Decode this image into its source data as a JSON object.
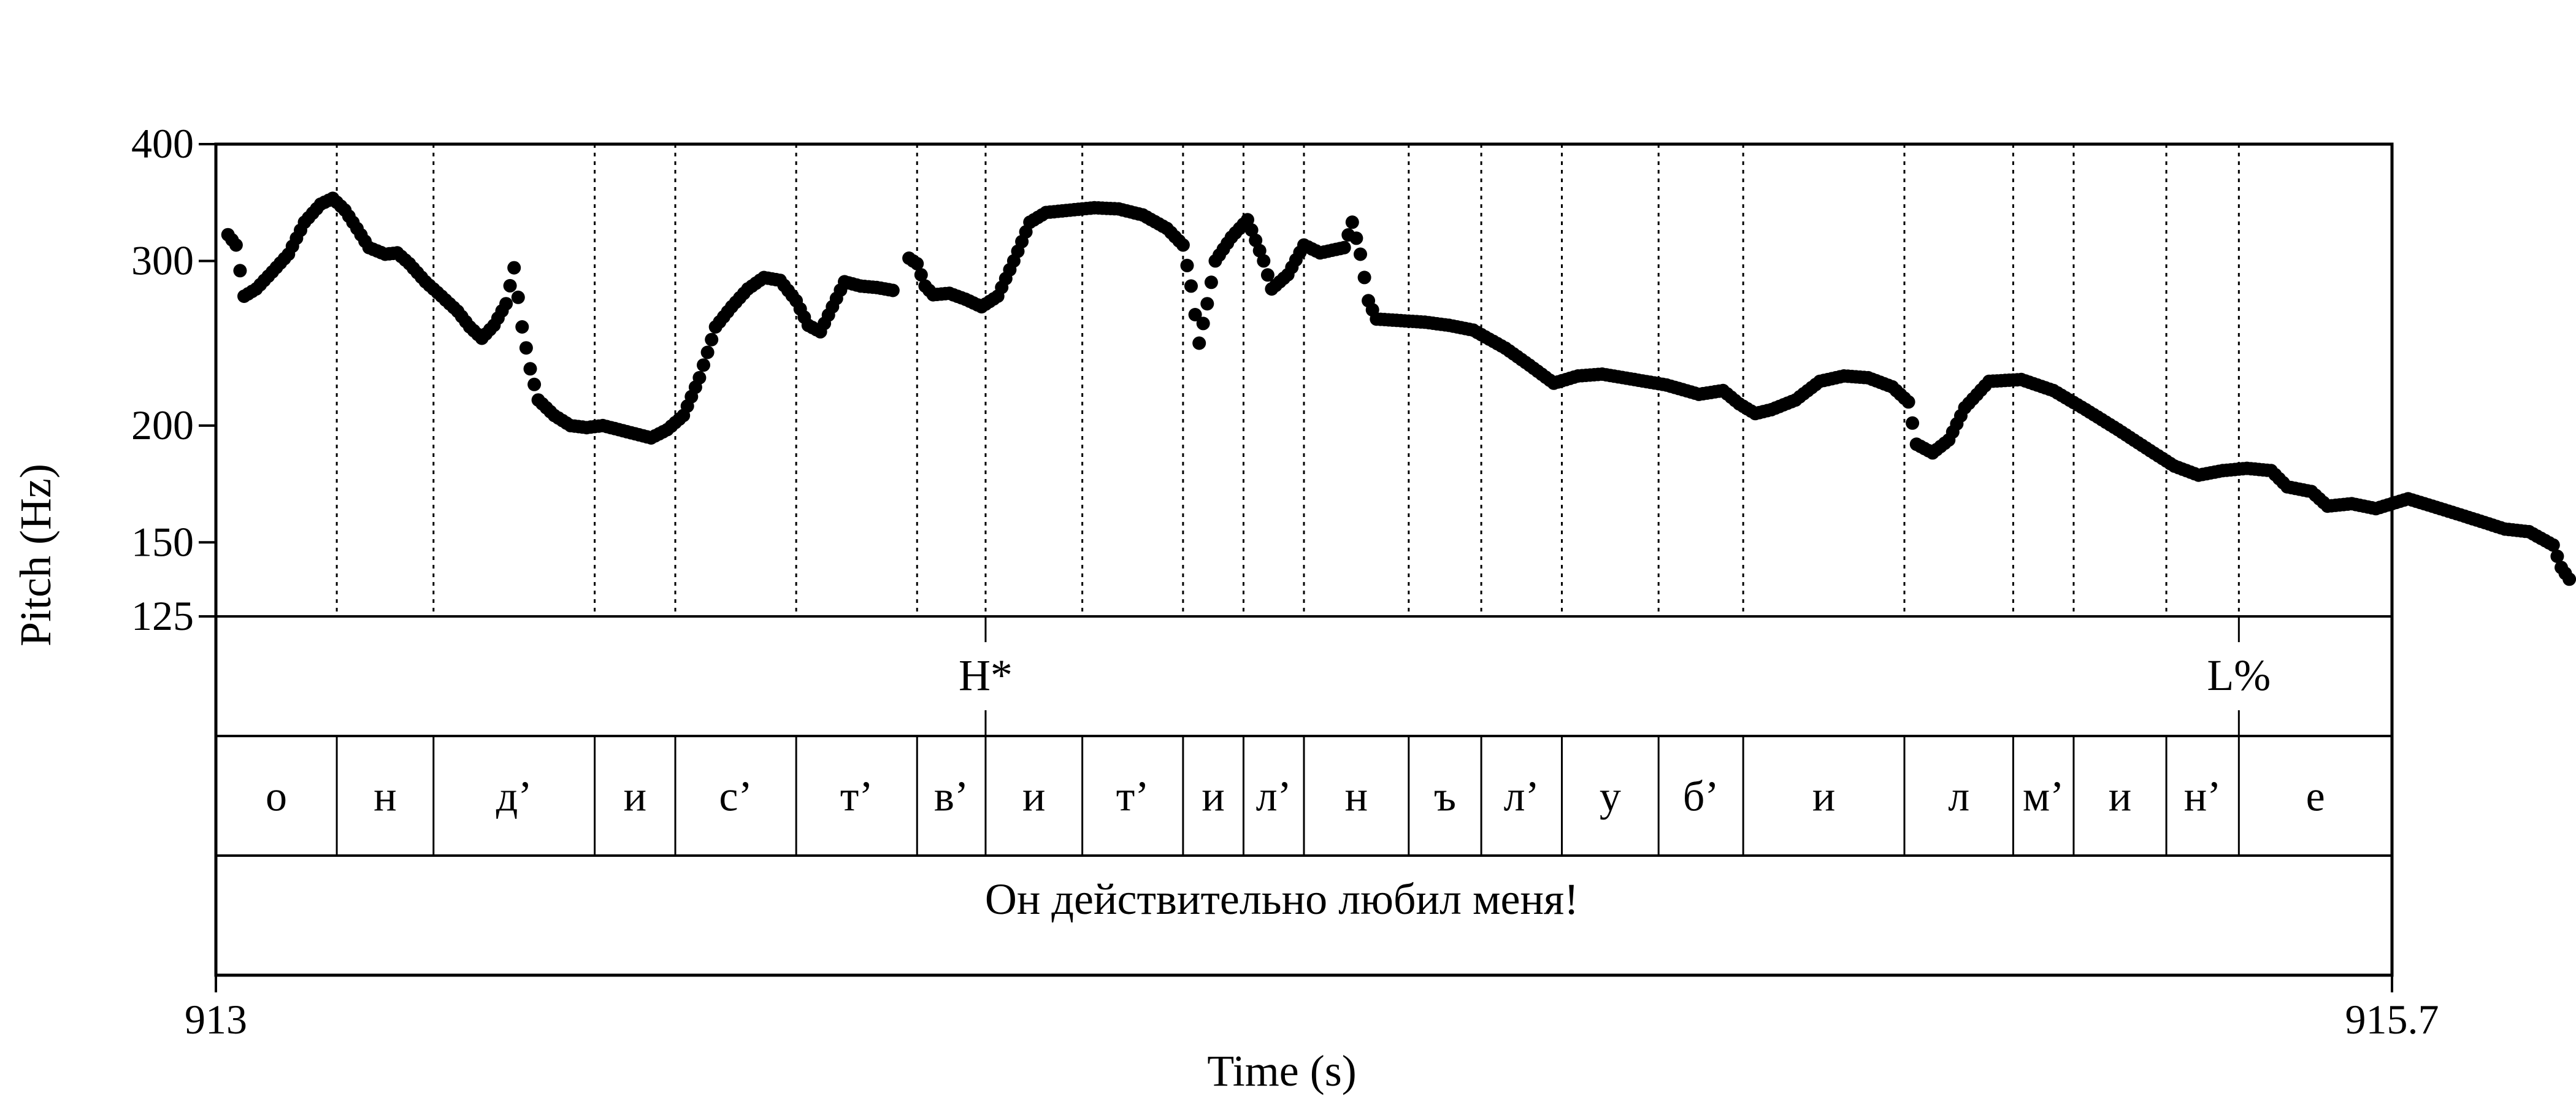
{
  "chart_data": {
    "type": "scatter",
    "xlabel": "Time (s)",
    "ylabel": "Pitch (Hz)",
    "xlim": [
      913,
      915.7
    ],
    "ylim": [
      125,
      400
    ],
    "y_scale": "log",
    "x_ticks": [
      "913",
      "915.7"
    ],
    "y_ticks": [
      {
        "value": 400,
        "label": "400"
      },
      {
        "value": 300,
        "label": "300"
      },
      {
        "value": 200,
        "label": "200"
      },
      {
        "value": 150,
        "label": "150"
      },
      {
        "value": 125,
        "label": "125"
      }
    ],
    "pitch_series": [
      {
        "name": "",
        "points": [
          [
            913.015,
            320
          ],
          [
            913.025,
            312
          ],
          [
            913.035,
            275
          ],
          [
            913.05,
            280
          ],
          [
            913.07,
            292
          ],
          [
            913.09,
            305
          ],
          [
            913.11,
            330
          ],
          [
            913.13,
            345
          ],
          [
            913.145,
            350
          ],
          [
            913.16,
            340
          ],
          [
            913.175,
            325
          ],
          [
            913.19,
            310
          ],
          [
            913.21,
            305
          ],
          [
            913.225,
            306
          ],
          [
            913.24,
            298
          ],
          [
            913.26,
            285
          ],
          [
            913.28,
            275
          ],
          [
            913.3,
            265
          ],
          [
            913.315,
            255
          ],
          [
            913.33,
            248
          ],
          [
            913.345,
            256
          ],
          [
            913.36,
            270
          ],
          [
            913.37,
            295
          ],
          [
            913.38,
            255
          ],
          [
            913.39,
            230
          ],
          [
            913.4,
            213
          ],
          [
            913.42,
            205
          ],
          [
            913.44,
            200
          ],
          [
            913.46,
            199
          ],
          [
            913.48,
            200
          ],
          [
            913.5,
            198
          ],
          [
            913.52,
            196
          ],
          [
            913.54,
            194
          ],
          [
            913.56,
            198
          ],
          [
            913.58,
            205
          ],
          [
            913.6,
            225
          ],
          [
            913.62,
            255
          ],
          [
            913.64,
            268
          ],
          [
            913.66,
            280
          ],
          [
            913.68,
            288
          ],
          [
            913.7,
            286
          ],
          [
            913.72,
            272
          ],
          [
            913.735,
            256
          ],
          [
            913.75,
            252
          ],
          [
            913.78,
            285
          ],
          [
            913.8,
            282
          ],
          [
            913.82,
            281
          ],
          [
            913.84,
            279
          ]
        ]
      },
      {
        "name": "",
        "points": [
          [
            913.86,
            302
          ],
          [
            913.87,
            298
          ],
          [
            913.88,
            282
          ],
          [
            913.89,
            276
          ],
          [
            913.91,
            277
          ],
          [
            913.93,
            273
          ],
          [
            913.95,
            268
          ],
          [
            913.97,
            275
          ],
          [
            913.99,
            300
          ],
          [
            914.01,
            330
          ],
          [
            914.03,
            338
          ],
          [
            914.06,
            340
          ],
          [
            914.09,
            342
          ],
          [
            914.12,
            341
          ],
          [
            914.15,
            336
          ],
          [
            914.18,
            325
          ],
          [
            914.2,
            312
          ],
          [
            914.21,
            282
          ],
          [
            914.22,
            245
          ],
          [
            914.23,
            270
          ],
          [
            914.24,
            300
          ],
          [
            914.26,
            318
          ],
          [
            914.28,
            332
          ],
          [
            914.3,
            300
          ],
          [
            914.31,
            280
          ],
          [
            914.33,
            290
          ],
          [
            914.35,
            312
          ],
          [
            914.37,
            306
          ],
          [
            914.4,
            310
          ],
          [
            914.41,
            330
          ],
          [
            914.42,
            305
          ],
          [
            914.43,
            272
          ],
          [
            914.44,
            260
          ],
          [
            914.47,
            259
          ],
          [
            914.5,
            258
          ],
          [
            914.53,
            256
          ],
          [
            914.56,
            253
          ],
          [
            914.6,
            242
          ],
          [
            914.63,
            232
          ],
          [
            914.66,
            222
          ],
          [
            914.69,
            226
          ],
          [
            914.72,
            227
          ],
          [
            914.76,
            224
          ],
          [
            914.8,
            221
          ],
          [
            914.84,
            216
          ],
          [
            914.87,
            218
          ],
          [
            914.89,
            211
          ],
          [
            914.91,
            206
          ],
          [
            914.93,
            208
          ],
          [
            914.96,
            213
          ],
          [
            914.99,
            223
          ],
          [
            915.02,
            226
          ],
          [
            915.05,
            225
          ],
          [
            915.08,
            220
          ],
          [
            915.1,
            212
          ],
          [
            915.11,
            191
          ],
          [
            915.13,
            187
          ],
          [
            915.15,
            193
          ],
          [
            915.17,
            209
          ],
          [
            915.2,
            223
          ],
          [
            915.24,
            224
          ],
          [
            915.28,
            218
          ],
          [
            915.32,
            208
          ],
          [
            915.36,
            198
          ],
          [
            915.4,
            188
          ],
          [
            915.43,
            181
          ],
          [
            915.46,
            177
          ],
          [
            915.49,
            179
          ],
          [
            915.52,
            180
          ],
          [
            915.55,
            179
          ],
          [
            915.57,
            172
          ],
          [
            915.6,
            170
          ],
          [
            915.62,
            164
          ],
          [
            915.65,
            165
          ],
          [
            915.68,
            163
          ],
          [
            915.7,
            165
          ],
          [
            915.72,
            167
          ],
          [
            915.75,
            164
          ],
          [
            915.78,
            161
          ],
          [
            915.81,
            158
          ],
          [
            915.84,
            155
          ],
          [
            915.87,
            154
          ],
          [
            915.9,
            149
          ],
          [
            915.91,
            141
          ],
          [
            915.92,
            137
          ]
        ]
      }
    ],
    "tone_tier": [
      {
        "time": 913.955,
        "label": "H*"
      },
      {
        "time": 915.51,
        "label": "L%"
      }
    ],
    "segments": [
      {
        "label": "о",
        "start": 913.0,
        "end": 913.15
      },
      {
        "label": "н",
        "start": 913.15,
        "end": 913.27
      },
      {
        "label": "д’",
        "start": 913.27,
        "end": 913.47
      },
      {
        "label": "и",
        "start": 913.47,
        "end": 913.57
      },
      {
        "label": "с’",
        "start": 913.57,
        "end": 913.72
      },
      {
        "label": "т’",
        "start": 913.72,
        "end": 913.87
      },
      {
        "label": "в’",
        "start": 913.87,
        "end": 913.955
      },
      {
        "label": "и",
        "start": 913.955,
        "end": 914.075
      },
      {
        "label": "т’",
        "start": 914.075,
        "end": 914.2
      },
      {
        "label": "и",
        "start": 914.2,
        "end": 914.275
      },
      {
        "label": "л’",
        "start": 914.275,
        "end": 914.35
      },
      {
        "label": "н",
        "start": 914.35,
        "end": 914.48
      },
      {
        "label": "ъ",
        "start": 914.48,
        "end": 914.57
      },
      {
        "label": "л’",
        "start": 914.57,
        "end": 914.67
      },
      {
        "label": "у",
        "start": 914.67,
        "end": 914.79
      },
      {
        "label": "б’",
        "start": 914.79,
        "end": 914.895
      },
      {
        "label": "и",
        "start": 914.895,
        "end": 915.095
      },
      {
        "label": "л",
        "start": 915.095,
        "end": 915.23
      },
      {
        "label": "м’",
        "start": 915.23,
        "end": 915.305
      },
      {
        "label": "и",
        "start": 915.305,
        "end": 915.42
      },
      {
        "label": "н’",
        "start": 915.42,
        "end": 915.51
      },
      {
        "label": "е",
        "start": 915.51,
        "end": 915.7
      }
    ],
    "sentence": "Он действительно любил меня!"
  }
}
